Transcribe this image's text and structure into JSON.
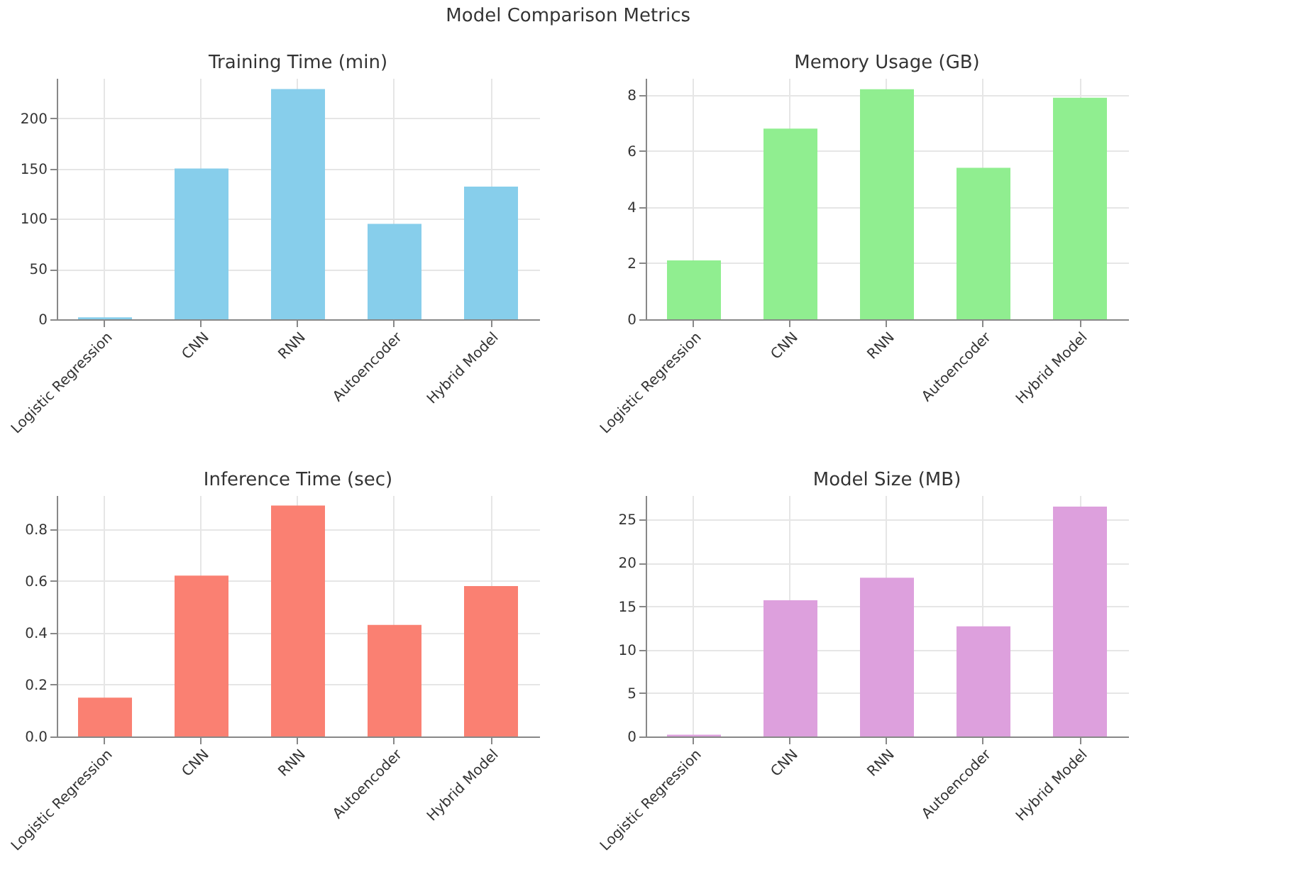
{
  "chart_data": [
    {
      "type": "bar",
      "title": "Training Time (min)",
      "annotations": [
        "Model Comparison Metrics"
      ],
      "categories": [
        "Logistic Regression",
        "CNN",
        "RNN",
        "Autoencoder",
        "Hybrid Model"
      ],
      "values": [
        2,
        150,
        229,
        95,
        132
      ],
      "color": "#87ceeb",
      "ylim": [
        0,
        240
      ],
      "yticks": [
        0,
        50,
        100,
        150,
        200
      ],
      "grid": true
    },
    {
      "type": "bar",
      "title": "Memory Usage (GB)",
      "categories": [
        "Logistic Regression",
        "CNN",
        "RNN",
        "Autoencoder",
        "Hybrid Model"
      ],
      "values": [
        2.1,
        6.8,
        8.2,
        5.4,
        7.9
      ],
      "color": "#90ee90",
      "ylim": [
        0,
        8.6
      ],
      "yticks": [
        0,
        2,
        4,
        6,
        8
      ],
      "grid": true
    },
    {
      "type": "bar",
      "title": "Inference Time (sec)",
      "categories": [
        "Logistic Regression",
        "CNN",
        "RNN",
        "Autoencoder",
        "Hybrid Model"
      ],
      "values": [
        0.15,
        0.62,
        0.89,
        0.43,
        0.58
      ],
      "color": "#fa8072",
      "ylim": [
        0,
        0.93
      ],
      "yticks": [
        {
          "value": 0,
          "label": "0.0"
        },
        0.2,
        0.4,
        0.6,
        0.8
      ],
      "grid": true
    },
    {
      "type": "bar",
      "title": "Model Size (MB)",
      "categories": [
        "Logistic Regression",
        "CNN",
        "RNN",
        "Autoencoder",
        "Hybrid Model"
      ],
      "values": [
        0.2,
        15.7,
        18.3,
        12.7,
        26.5
      ],
      "color": "#dda0dd",
      "ylim": [
        0,
        27.8
      ],
      "yticks": [
        0,
        5,
        10,
        15,
        20,
        25
      ],
      "grid": true
    }
  ]
}
